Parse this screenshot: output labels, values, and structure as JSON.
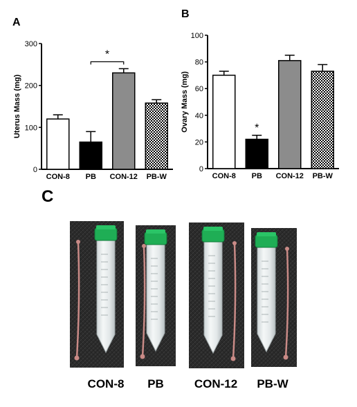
{
  "chart_data": [
    {
      "panel": "A",
      "type": "bar",
      "ylabel": "Uterus Mass (mg)",
      "xlabel": "",
      "ylim": [
        0,
        300
      ],
      "yticks": [
        0,
        100,
        200,
        300
      ],
      "categories": [
        "CON-8",
        "PB",
        "CON-12",
        "PB-W"
      ],
      "values": [
        120,
        65,
        230,
        158
      ],
      "errors": [
        10,
        25,
        10,
        8
      ],
      "fills": [
        "white",
        "black",
        "gray",
        "checker"
      ],
      "significance": [
        {
          "from": 1,
          "to": 2,
          "label": "*"
        }
      ],
      "grid": false,
      "legend": "none"
    },
    {
      "panel": "B",
      "type": "bar",
      "ylabel": "Ovary Mass (mg)",
      "xlabel": "",
      "ylim": [
        0,
        100
      ],
      "yticks": [
        0,
        20,
        40,
        60,
        80,
        100
      ],
      "categories": [
        "CON-8",
        "PB",
        "CON-12",
        "PB-W"
      ],
      "values": [
        70,
        22,
        81,
        73
      ],
      "errors": [
        3,
        3,
        4,
        5
      ],
      "fills": [
        "white",
        "black",
        "gray",
        "checker"
      ],
      "significance": [
        {
          "bar": 1,
          "label": "*"
        }
      ],
      "grid": false,
      "legend": "none"
    }
  ],
  "photo_panel": {
    "letter": "C",
    "labels": [
      "CON-8",
      "PB",
      "CON-12",
      "PB-W"
    ],
    "tube_cap_color": "#1fae55",
    "background_color": "#2b2b2b",
    "tissue_color": "#c98a86"
  },
  "colors": {
    "bar_gray": "#8c8c8c",
    "bar_black": "#000000",
    "bar_white": "#ffffff"
  }
}
